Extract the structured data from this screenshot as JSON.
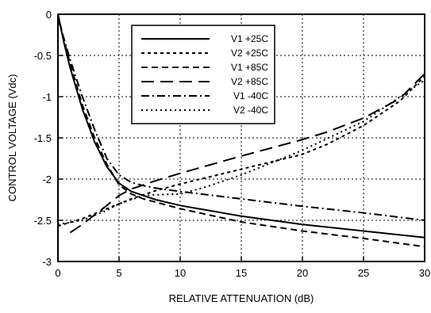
{
  "chart_data": {
    "type": "line",
    "title": "",
    "xlabel": "RELATIVE ATTENUATION (dB)",
    "ylabel": "CONTROL VOLTAGE (Vdc)",
    "xlim": [
      0,
      30
    ],
    "ylim": [
      -3,
      0
    ],
    "xticks": [
      0,
      5,
      10,
      15,
      20,
      25,
      30
    ],
    "yticks": [
      0,
      -0.5,
      -1,
      -1.5,
      -2,
      -2.5,
      -3
    ],
    "xtick_labels": [
      "0",
      "5",
      "10",
      "15",
      "20",
      "25",
      "30"
    ],
    "ytick_labels": [
      "0",
      "-0.5",
      "-1",
      "-1.5",
      "-2",
      "-2.5",
      "-3"
    ],
    "grid": true,
    "legend_position": "top-center",
    "series": [
      {
        "name": "V1 +25C",
        "style": "solid",
        "x": [
          0,
          0.5,
          1,
          1.5,
          2,
          3,
          4,
          5,
          6,
          7,
          8,
          10,
          15,
          20,
          25,
          30
        ],
        "y": [
          0,
          -0.35,
          -0.65,
          -0.9,
          -1.15,
          -1.55,
          -1.85,
          -2.05,
          -2.15,
          -2.2,
          -2.25,
          -2.32,
          -2.45,
          -2.55,
          -2.63,
          -2.71
        ]
      },
      {
        "name": "V2 +25C",
        "style": "short-dash",
        "x": [
          0,
          2,
          4,
          5,
          6,
          8,
          10,
          15,
          20,
          22,
          25,
          28,
          30
        ],
        "y": [
          -2.57,
          -2.48,
          -2.36,
          -2.3,
          -2.24,
          -2.14,
          -2.06,
          -1.88,
          -1.7,
          -1.58,
          -1.35,
          -1.05,
          -0.75
        ]
      },
      {
        "name": "V1 +85C",
        "style": "dash",
        "x": [
          0,
          0.5,
          1,
          1.5,
          2,
          3,
          4,
          5,
          6,
          7,
          8,
          10,
          15,
          20,
          25,
          30
        ],
        "y": [
          0,
          -0.32,
          -0.6,
          -0.85,
          -1.1,
          -1.5,
          -1.82,
          -2.07,
          -2.18,
          -2.24,
          -2.28,
          -2.36,
          -2.52,
          -2.63,
          -2.72,
          -2.82
        ]
      },
      {
        "name": "V2 +85C",
        "style": "long-dash",
        "x": [
          1,
          2,
          4,
          5,
          6,
          8,
          10,
          15,
          20,
          22,
          25,
          28,
          30
        ],
        "y": [
          -2.65,
          -2.55,
          -2.32,
          -2.2,
          -2.12,
          -2.02,
          -1.93,
          -1.72,
          -1.52,
          -1.43,
          -1.26,
          -1.02,
          -0.72
        ]
      },
      {
        "name": "V1 -40C",
        "style": "dash-dot",
        "x": [
          0,
          0.5,
          1,
          1.5,
          2,
          3,
          4,
          5,
          6,
          7,
          8,
          10,
          15,
          20,
          25,
          30
        ],
        "y": [
          -0.05,
          -0.3,
          -0.55,
          -0.78,
          -1.0,
          -1.4,
          -1.75,
          -1.95,
          -2.04,
          -2.08,
          -2.11,
          -2.15,
          -2.24,
          -2.33,
          -2.41,
          -2.5
        ]
      },
      {
        "name": "V2 -40C",
        "style": "dotted",
        "x": [
          0,
          2,
          4,
          5,
          6,
          7,
          8,
          10,
          12,
          15,
          20,
          25,
          30
        ],
        "y": [
          -2.55,
          -2.5,
          -2.38,
          -2.3,
          -2.25,
          -2.2,
          -2.19,
          -2.18,
          -2.1,
          -1.95,
          -1.65,
          -1.3,
          -0.8
        ]
      }
    ]
  }
}
